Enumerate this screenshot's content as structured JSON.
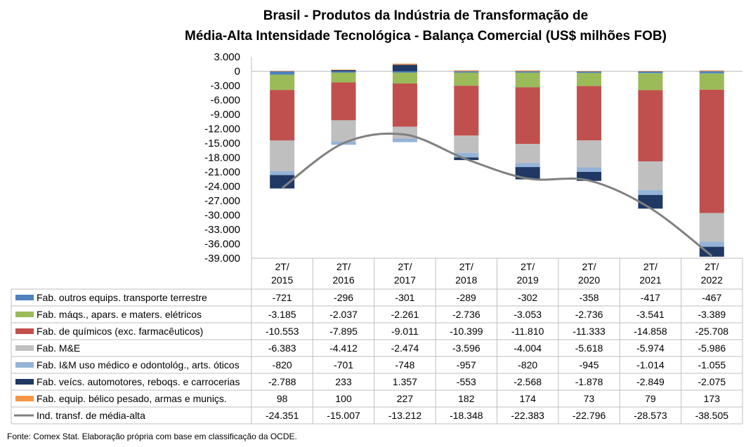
{
  "title": {
    "line1": "Brasil - Produtos da Indústria de Transformação de",
    "line2": "Média-Alta Intensidade Tecnológica - Balança Comercial (US$ milhões FOB)"
  },
  "source": "Fonte: Comex Stat. Elaboração própria com base em classificação da OCDE.",
  "chart_data": {
    "type": "bar",
    "stacked": true,
    "categories": [
      "2T/ 2015",
      "2T/ 2016",
      "2T/ 2017",
      "2T/ 2018",
      "2T/ 2019",
      "2T/ 2020",
      "2T/ 2021",
      "2T/ 2022"
    ],
    "category_lines": [
      [
        "2T/",
        "2015"
      ],
      [
        "2T/",
        "2016"
      ],
      [
        "2T/",
        "2017"
      ],
      [
        "2T/",
        "2018"
      ],
      [
        "2T/",
        "2019"
      ],
      [
        "2T/",
        "2020"
      ],
      [
        "2T/",
        "2021"
      ],
      [
        "2T/",
        "2022"
      ]
    ],
    "ylim": [
      -39000,
      3000
    ],
    "yticks": [
      3000,
      0,
      -3000,
      -6000,
      -9000,
      -12000,
      -15000,
      -18000,
      -21000,
      -24000,
      -27000,
      -30000,
      -33000,
      -36000,
      -39000
    ],
    "ytick_labels": [
      "3.000",
      "0",
      "-3.000",
      "-6.000",
      "-9.000",
      "-12.000",
      "-15.000",
      "-18.000",
      "-21.000",
      "-24.000",
      "-27.000",
      "-30.000",
      "-33.000",
      "-36.000",
      "-39.000"
    ],
    "series": [
      {
        "name": "Fab. outros equips. transporte terrestre",
        "color": "#4f81bd",
        "kind": "bar",
        "values": [
          -721,
          -296,
          -301,
          -289,
          -302,
          -358,
          -417,
          -467
        ],
        "labels": [
          "-721",
          "-296",
          "-301",
          "-289",
          "-302",
          "-358",
          "-417",
          "-467"
        ]
      },
      {
        "name": "Fab. máqs., apars. e maters. elétricos",
        "color": "#9bbb59",
        "kind": "bar",
        "values": [
          -3185,
          -2037,
          -2261,
          -2736,
          -3053,
          -2736,
          -3541,
          -3389
        ],
        "labels": [
          "-3.185",
          "-2.037",
          "-2.261",
          "-2.736",
          "-3.053",
          "-2.736",
          "-3.541",
          "-3.389"
        ]
      },
      {
        "name": "Fab. de químicos (exc. farmacêuticos)",
        "color": "#c0504d",
        "kind": "bar",
        "values": [
          -10553,
          -7895,
          -9011,
          -10399,
          -11810,
          -11333,
          -14858,
          -25708
        ],
        "labels": [
          "-10.553",
          "-7.895",
          "-9.011",
          "-10.399",
          "-11.810",
          "-11.333",
          "-14.858",
          "-25.708"
        ]
      },
      {
        "name": "Fab. M&E",
        "color": "#bfbfbf",
        "kind": "bar",
        "values": [
          -6383,
          -4412,
          -2474,
          -3596,
          -4004,
          -5618,
          -5974,
          -5986
        ],
        "labels": [
          "-6.383",
          "-4.412",
          "-2.474",
          "-3.596",
          "-4.004",
          "-5.618",
          "-5.974",
          "-5.986"
        ]
      },
      {
        "name": "Fab. I&M uso médico e odontológ., arts. óticos",
        "color": "#95b3d7",
        "kind": "bar",
        "values": [
          -820,
          -701,
          -748,
          -957,
          -820,
          -945,
          -1014,
          -1055
        ],
        "labels": [
          "-820",
          "-701",
          "-748",
          "-957",
          "-820",
          "-945",
          "-1.014",
          "-1.055"
        ]
      },
      {
        "name": "Fab. veícs. automotores, reboqs. e carrocerias",
        "color": "#1f3864",
        "kind": "bar",
        "values": [
          -2788,
          233,
          1357,
          -553,
          -2568,
          -1878,
          -2849,
          -2075
        ],
        "labels": [
          "-2.788",
          "233",
          "1.357",
          "-553",
          "-2.568",
          "-1.878",
          "-2.849",
          "-2.075"
        ]
      },
      {
        "name": "Fab. equip. bélico pesado, armas e muniçs.",
        "color": "#f79646",
        "kind": "bar",
        "values": [
          98,
          100,
          227,
          182,
          174,
          73,
          79,
          173
        ],
        "labels": [
          "98",
          "100",
          "227",
          "182",
          "174",
          "73",
          "79",
          "173"
        ]
      },
      {
        "name": "Ind. transf. de média-alta",
        "color": "#808080",
        "kind": "line",
        "values": [
          -24351,
          -15007,
          -13212,
          -18348,
          -22383,
          -22796,
          -28573,
          -38505
        ],
        "labels": [
          "-24.351",
          "-15.007",
          "-13.212",
          "-18.348",
          "-22.383",
          "-22.796",
          "-28.573",
          "-38.505"
        ]
      }
    ]
  }
}
